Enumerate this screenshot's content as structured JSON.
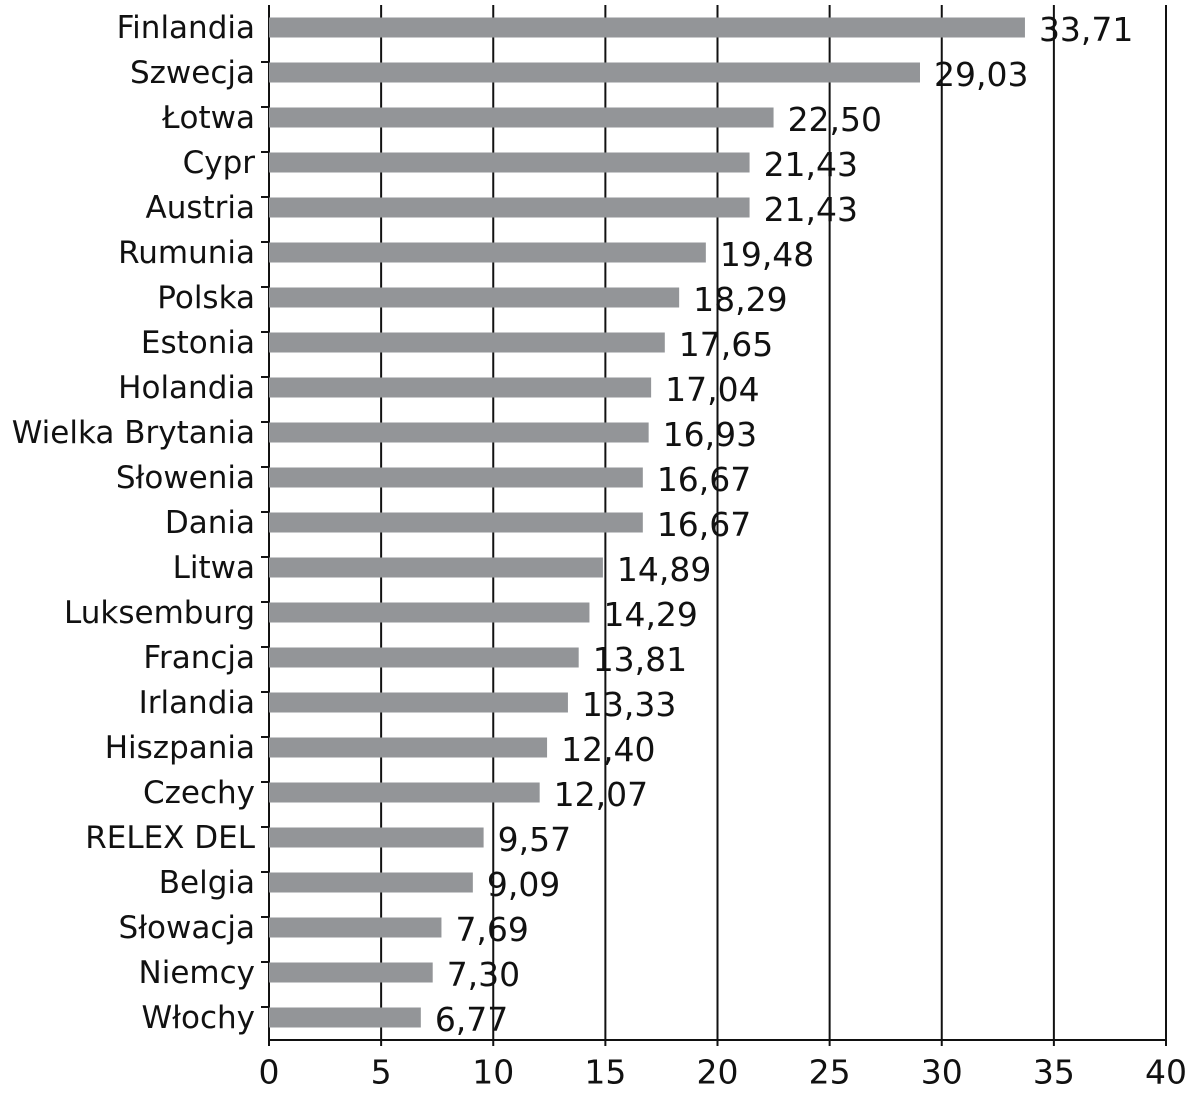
{
  "chart_data": {
    "type": "bar",
    "orientation": "horizontal",
    "categories": [
      "Finlandia",
      "Szwecja",
      "Łotwa",
      "Cypr",
      "Austria",
      "Rumunia",
      "Polska",
      "Estonia",
      "Holandia",
      "Wielka Brytania",
      "Słowenia",
      "Dania",
      "Litwa",
      "Luksemburg",
      "Francja",
      "Irlandia",
      "Hiszpania",
      "Czechy",
      "RELEX DEL",
      "Belgia",
      "Słowacja",
      "Niemcy",
      "Włochy"
    ],
    "values": [
      33.71,
      29.03,
      22.5,
      21.43,
      21.43,
      19.48,
      18.29,
      17.65,
      17.04,
      16.93,
      16.67,
      16.67,
      14.89,
      14.29,
      13.81,
      13.33,
      12.4,
      12.07,
      9.57,
      9.09,
      7.69,
      7.3,
      6.77
    ],
    "value_labels": [
      "33,71",
      "29,03",
      "22,50",
      "21,43",
      "21,43",
      "19,48",
      "18,29",
      "17,65",
      "17,04",
      "16,93",
      "16,67",
      "16,67",
      "14,89",
      "14,29",
      "13,81",
      "13,33",
      "12,40",
      "12,07",
      "9,57",
      "9,09",
      "7,69",
      "7,30",
      "6,77"
    ],
    "color": "#939598",
    "xlim": [
      0,
      40
    ],
    "xticks": [
      0,
      5,
      10,
      15,
      20,
      25,
      30,
      35,
      40
    ],
    "grid": true
  }
}
